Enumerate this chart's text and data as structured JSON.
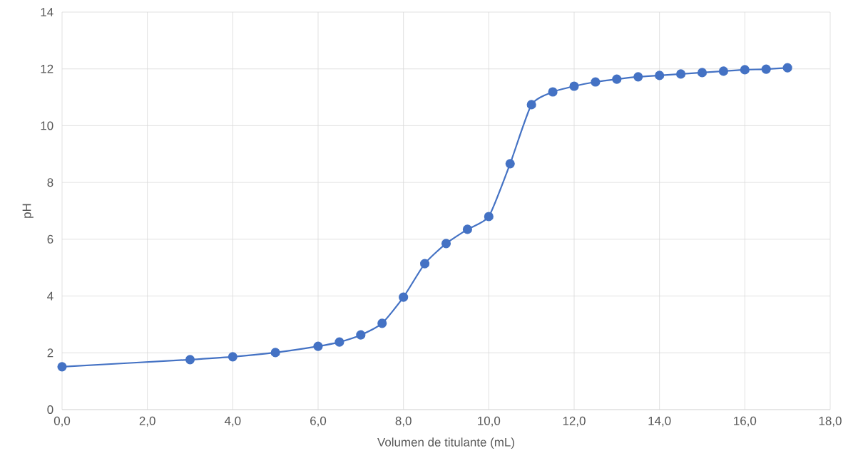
{
  "chart_data": {
    "type": "line",
    "xlabel": "Volumen de titulante (mL)",
    "ylabel": "pH",
    "x": [
      0,
      3,
      4,
      5,
      6,
      6.5,
      7,
      7.5,
      8,
      8.5,
      9,
      9.5,
      10,
      10.5,
      11,
      11.5,
      12,
      12.5,
      13,
      13.5,
      14,
      14.5,
      15,
      15.5,
      16,
      16.5,
      17
    ],
    "series": [
      {
        "color": "#4472c4",
        "values": [
          1.51,
          1.76,
          1.86,
          2.01,
          2.23,
          2.38,
          2.63,
          3.04,
          3.96,
          5.14,
          5.85,
          6.35,
          6.8,
          8.66,
          10.74,
          11.19,
          11.39,
          11.54,
          11.64,
          11.72,
          11.77,
          11.82,
          11.87,
          11.92,
          11.97,
          11.99,
          12.04
        ]
      }
    ],
    "xlim": [
      0,
      18
    ],
    "ylim": [
      0,
      14
    ],
    "xticks": [
      {
        "value": 0,
        "label": "0,0"
      },
      {
        "value": 2,
        "label": "2,0"
      },
      {
        "value": 4,
        "label": "4,0"
      },
      {
        "value": 6,
        "label": "6,0"
      },
      {
        "value": 8,
        "label": "8,0"
      },
      {
        "value": 10,
        "label": "10,0"
      },
      {
        "value": 12,
        "label": "12,0"
      },
      {
        "value": 14,
        "label": "14,0"
      },
      {
        "value": 16,
        "label": "16,0"
      },
      {
        "value": 18,
        "label": "18,0"
      }
    ],
    "yticks": [
      0,
      2,
      4,
      6,
      8,
      10,
      12,
      14
    ],
    "grid": true,
    "marker": "circle",
    "line_style": "solid"
  }
}
